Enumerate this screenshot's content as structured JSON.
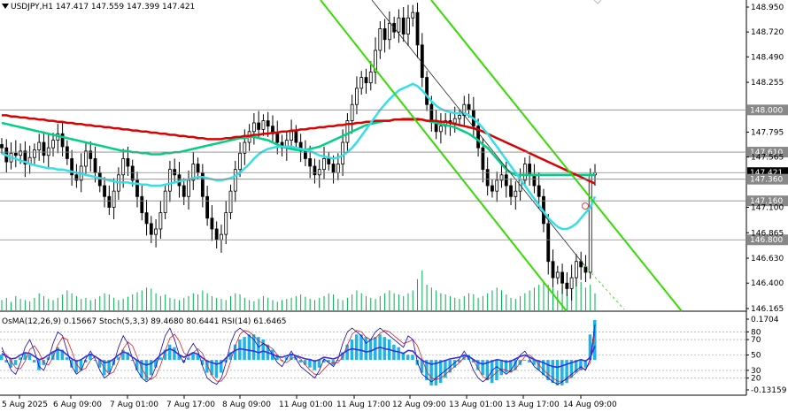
{
  "header": {
    "symbol_line": "USDJPY,H1  147.417 147.559 147.399 147.421",
    "indicator_line": "OsMA(12,26,9) 0.15667  Stoch(5,3,3) 89.4680 80.6441  RSI(14) 61.6465"
  },
  "chart_data": {
    "type": "candlestick",
    "symbol": "USDJPY",
    "timeframe": "H1",
    "ohlc_current": {
      "open": 147.417,
      "high": 147.559,
      "low": 147.399,
      "close": 147.421
    },
    "price_axis": {
      "min": 146.165,
      "max": 148.95,
      "ticks": [
        "148.950",
        "148.720",
        "148.490",
        "148.255",
        "148.000",
        "147.795",
        "147.565",
        "147.421",
        "147.360",
        "147.100",
        "146.865",
        "146.800",
        "146.630",
        "146.400",
        "146.165"
      ]
    },
    "price_markers": [
      {
        "label": "148.000",
        "value": 148.0,
        "style": "grey"
      },
      {
        "label": "147.610",
        "value": 147.61,
        "style": "grey"
      },
      {
        "label": "147.421",
        "value": 147.421,
        "style": "black"
      },
      {
        "label": "147.360",
        "value": 147.36,
        "style": "grey"
      },
      {
        "label": "147.160",
        "value": 147.16,
        "style": "grey"
      },
      {
        "label": "146.800",
        "value": 146.8,
        "style": "grey"
      }
    ],
    "x_labels": [
      "5 Aug 2025",
      "6 Aug 09:00",
      "7 Aug 01:00",
      "7 Aug 17:00",
      "8 Aug 09:00",
      "11 Aug 01:00",
      "11 Aug 17:00",
      "12 Aug 09:00",
      "13 Aug 01:00",
      "13 Aug 17:00",
      "14 Aug 09:00"
    ],
    "candles": [
      147.65,
      147.52,
      147.6,
      147.58,
      147.62,
      147.5,
      147.56,
      147.63,
      147.7,
      147.58,
      147.65,
      147.72,
      147.78,
      147.66,
      147.55,
      147.4,
      147.35,
      147.48,
      147.62,
      147.55,
      147.42,
      147.3,
      147.2,
      147.1,
      147.25,
      147.4,
      147.55,
      147.48,
      147.35,
      147.2,
      147.05,
      146.95,
      146.85,
      146.9,
      147.05,
      147.25,
      147.45,
      147.4,
      147.3,
      147.2,
      147.35,
      147.5,
      147.42,
      147.2,
      147.0,
      146.9,
      146.8,
      146.85,
      147.05,
      147.25,
      147.45,
      147.6,
      147.7,
      147.8,
      147.88,
      147.82,
      147.9,
      147.85,
      147.78,
      147.7,
      147.65,
      147.72,
      147.8,
      147.7,
      147.62,
      147.55,
      147.48,
      147.4,
      147.45,
      147.55,
      147.5,
      147.42,
      147.5,
      147.7,
      147.9,
      148.05,
      148.2,
      148.3,
      148.25,
      148.35,
      148.55,
      148.75,
      148.65,
      148.8,
      148.72,
      148.85,
      148.7,
      148.85,
      148.9,
      148.6,
      148.3,
      148.05,
      147.9,
      147.8,
      147.85,
      147.9,
      147.88,
      147.92,
      147.95,
      148.05,
      148.0,
      147.85,
      147.65,
      147.45,
      147.3,
      147.25,
      147.35,
      147.4,
      147.3,
      147.2,
      147.25,
      147.35,
      147.5,
      147.4,
      147.3,
      147.2,
      146.95,
      146.6,
      146.45,
      146.5,
      146.4,
      146.35,
      146.45,
      146.6,
      146.55,
      146.5,
      147.4,
      147.42
    ],
    "volumes": [
      18,
      22,
      15,
      25,
      20,
      18,
      16,
      22,
      30,
      25,
      20,
      18,
      22,
      28,
      35,
      30,
      25,
      20,
      22,
      18,
      20,
      25,
      30,
      28,
      22,
      18,
      20,
      24,
      28,
      32,
      35,
      40,
      38,
      30,
      25,
      28,
      22,
      20,
      18,
      22,
      25,
      30,
      28,
      35,
      30,
      25,
      22,
      20,
      18,
      25,
      30,
      28,
      22,
      18,
      16,
      20,
      25,
      22,
      18,
      15,
      18,
      20,
      22,
      25,
      28,
      24,
      20,
      18,
      22,
      25,
      30,
      28,
      20,
      18,
      22,
      28,
      35,
      30,
      25,
      22,
      20,
      25,
      30,
      35,
      30,
      28,
      25,
      30,
      35,
      55,
      70,
      45,
      40,
      35,
      30,
      28,
      25,
      22,
      20,
      25,
      30,
      28,
      22,
      25,
      30,
      35,
      40,
      35,
      28,
      22,
      20,
      25,
      30,
      35,
      40,
      45,
      50,
      45,
      40,
      35,
      42,
      48,
      55,
      65,
      50,
      40,
      45,
      30
    ],
    "ma_green": [
      147.88,
      147.87,
      147.86,
      147.85,
      147.84,
      147.83,
      147.82,
      147.81,
      147.8,
      147.79,
      147.78,
      147.77,
      147.76,
      147.75,
      147.74,
      147.73,
      147.72,
      147.71,
      147.7,
      147.69,
      147.68,
      147.67,
      147.66,
      147.65,
      147.64,
      147.63,
      147.62,
      147.62,
      147.61,
      147.61,
      147.6,
      147.6,
      147.59,
      147.59,
      147.59,
      147.6,
      147.6,
      147.61,
      147.61,
      147.62,
      147.63,
      147.64,
      147.65,
      147.66,
      147.67,
      147.68,
      147.69,
      147.7,
      147.71,
      147.72,
      147.73,
      147.74,
      147.74,
      147.75,
      147.75,
      147.74,
      147.73,
      147.72,
      147.7,
      147.68,
      147.66,
      147.65,
      147.64,
      147.63,
      147.63,
      147.63,
      147.64,
      147.65,
      147.66,
      147.68,
      147.7,
      147.72,
      147.74,
      147.76,
      147.78,
      147.8,
      147.82,
      147.84,
      147.86,
      147.87,
      147.88,
      147.89,
      147.9,
      147.9,
      147.91,
      147.91,
      147.92,
      147.92,
      147.92,
      147.92,
      147.91,
      147.9,
      147.89,
      147.88,
      147.87,
      147.86,
      147.85,
      147.84,
      147.82,
      147.8,
      147.78,
      147.75,
      147.72,
      147.68,
      147.65,
      147.6,
      147.55,
      147.5,
      147.45,
      147.42,
      147.4,
      147.4,
      147.4,
      147.4,
      147.4,
      147.4,
      147.4,
      147.4,
      147.4,
      147.4,
      147.4,
      147.4,
      147.4,
      147.4,
      147.4,
      147.4,
      147.4,
      147.4
    ],
    "ma_red": [
      147.95,
      147.95,
      147.94,
      147.94,
      147.93,
      147.93,
      147.92,
      147.92,
      147.91,
      147.91,
      147.9,
      147.9,
      147.89,
      147.89,
      147.88,
      147.88,
      147.87,
      147.87,
      147.86,
      147.86,
      147.85,
      147.85,
      147.84,
      147.84,
      147.83,
      147.83,
      147.82,
      147.82,
      147.81,
      147.81,
      147.8,
      147.8,
      147.79,
      147.79,
      147.78,
      147.78,
      147.77,
      147.77,
      147.76,
      147.76,
      147.75,
      147.75,
      147.74,
      147.74,
      147.73,
      147.73,
      147.73,
      147.73,
      147.74,
      147.74,
      147.75,
      147.75,
      147.76,
      147.76,
      147.77,
      147.77,
      147.78,
      147.78,
      147.79,
      147.79,
      147.8,
      147.8,
      147.81,
      147.81,
      147.82,
      147.82,
      147.83,
      147.83,
      147.84,
      147.84,
      147.85,
      147.85,
      147.86,
      147.86,
      147.87,
      147.87,
      147.88,
      147.88,
      147.89,
      147.89,
      147.9,
      147.9,
      147.9,
      147.9,
      147.91,
      147.91,
      147.91,
      147.91,
      147.91,
      147.91,
      147.91,
      147.9,
      147.9,
      147.9,
      147.89,
      147.89,
      147.88,
      147.87,
      147.86,
      147.85,
      147.84,
      147.83,
      147.82,
      147.8,
      147.78,
      147.76,
      147.74,
      147.72,
      147.7,
      147.68,
      147.66,
      147.64,
      147.62,
      147.6,
      147.58,
      147.56,
      147.54,
      147.52,
      147.5,
      147.48,
      147.46,
      147.44,
      147.42,
      147.4,
      147.38,
      147.36,
      147.34,
      147.32
    ],
    "ma_cyan": [
      147.6,
      147.58,
      147.56,
      147.55,
      147.53,
      147.52,
      147.5,
      147.49,
      147.48,
      147.47,
      147.46,
      147.46,
      147.45,
      147.45,
      147.44,
      147.43,
      147.42,
      147.41,
      147.4,
      147.39,
      147.38,
      147.37,
      147.36,
      147.35,
      147.34,
      147.33,
      147.33,
      147.33,
      147.32,
      147.32,
      147.31,
      147.31,
      147.3,
      147.3,
      147.3,
      147.31,
      147.32,
      147.33,
      147.34,
      147.35,
      147.36,
      147.37,
      147.38,
      147.38,
      147.37,
      147.36,
      147.35,
      147.35,
      147.36,
      147.37,
      147.39,
      147.42,
      147.46,
      147.5,
      147.55,
      147.59,
      147.62,
      147.64,
      147.65,
      147.66,
      147.66,
      147.66,
      147.66,
      147.65,
      147.64,
      147.63,
      147.62,
      147.6,
      147.58,
      147.57,
      147.56,
      147.55,
      147.56,
      147.58,
      147.61,
      147.65,
      147.7,
      147.76,
      147.82,
      147.88,
      147.94,
      148.0,
      148.05,
      148.1,
      148.14,
      148.18,
      148.2,
      148.22,
      148.24,
      148.22,
      148.18,
      148.13,
      148.08,
      148.04,
      148.01,
      147.99,
      147.98,
      147.97,
      147.97,
      147.97,
      147.95,
      147.92,
      147.88,
      147.83,
      147.78,
      147.72,
      147.66,
      147.6,
      147.54,
      147.48,
      147.42,
      147.36,
      147.3,
      147.24,
      147.18,
      147.12,
      147.06,
      147.0,
      146.96,
      146.92,
      146.9,
      146.9,
      146.92,
      146.95,
      147.0,
      147.05,
      147.1,
      147.2
    ],
    "channel_lines": [
      {
        "name": "",
        "from": [
          0,
          148.95
        ],
        "to": [
          128,
          146.1
        ]
      },
      {
        "name": "",
        "from": [
          0,
          148.95
        ],
        "to": [
          128,
          146.1
        ]
      }
    ],
    "oscillator": {
      "ticks": [
        "0.1704",
        "80",
        "70",
        "50",
        "30",
        "20",
        "-0.13159"
      ],
      "osma_values": [
        0.02,
        -0.01,
        -0.03,
        -0.02,
        0.01,
        0.03,
        0.02,
        -0.01,
        -0.04,
        -0.02,
        0.01,
        0.03,
        0.05,
        0.04,
        0.01,
        -0.03,
        -0.05,
        -0.04,
        -0.01,
        0.02,
        0.0,
        -0.03,
        -0.06,
        -0.05,
        -0.02,
        0.01,
        0.04,
        0.03,
        0.0,
        -0.04,
        -0.07,
        -0.08,
        -0.06,
        -0.03,
        0.01,
        0.04,
        0.06,
        0.05,
        0.02,
        -0.01,
        0.01,
        0.03,
        0.02,
        -0.02,
        -0.05,
        -0.06,
        -0.07,
        -0.05,
        -0.01,
        0.03,
        0.06,
        0.08,
        0.09,
        0.1,
        0.1,
        0.09,
        0.08,
        0.06,
        0.04,
        0.02,
        0.0,
        0.01,
        0.02,
        0.01,
        -0.01,
        -0.02,
        -0.03,
        -0.04,
        -0.03,
        -0.01,
        -0.01,
        -0.02,
        0.0,
        0.03,
        0.06,
        0.08,
        0.1,
        0.1,
        0.09,
        0.08,
        0.09,
        0.1,
        0.09,
        0.08,
        0.06,
        0.05,
        0.03,
        0.02,
        0.02,
        -0.02,
        -0.05,
        -0.08,
        -0.1,
        -0.1,
        -0.09,
        -0.07,
        -0.05,
        -0.03,
        -0.01,
        0.02,
        0.02,
        -0.01,
        -0.04,
        -0.06,
        -0.08,
        -0.09,
        -0.08,
        -0.06,
        -0.05,
        -0.05,
        -0.04,
        -0.02,
        0.0,
        -0.01,
        -0.02,
        -0.04,
        -0.06,
        -0.08,
        -0.09,
        -0.1,
        -0.1,
        -0.09,
        -0.07,
        -0.05,
        -0.04,
        -0.03,
        0.1,
        0.1567
      ],
      "stoch_main": [
        60,
        45,
        30,
        25,
        40,
        60,
        70,
        55,
        35,
        30,
        45,
        65,
        80,
        75,
        55,
        35,
        25,
        30,
        45,
        55,
        45,
        30,
        20,
        25,
        40,
        60,
        75,
        65,
        45,
        30,
        20,
        15,
        20,
        35,
        55,
        75,
        85,
        70,
        50,
        40,
        55,
        65,
        55,
        35,
        20,
        15,
        12,
        20,
        40,
        65,
        80,
        85,
        80,
        75,
        70,
        60,
        65,
        60,
        50,
        40,
        35,
        45,
        55,
        45,
        35,
        30,
        25,
        20,
        30,
        45,
        40,
        35,
        45,
        65,
        80,
        85,
        80,
        75,
        65,
        70,
        80,
        85,
        80,
        75,
        70,
        65,
        60,
        75,
        70,
        40,
        25,
        20,
        15,
        20,
        25,
        30,
        35,
        40,
        45,
        55,
        45,
        30,
        20,
        15,
        20,
        30,
        35,
        30,
        25,
        30,
        40,
        50,
        55,
        45,
        35,
        30,
        25,
        20,
        15,
        12,
        15,
        20,
        25,
        30,
        35,
        30,
        45,
        89.47
      ],
      "stoch_signal": [
        55,
        50,
        42,
        33,
        32,
        42,
        57,
        62,
        53,
        40,
        37,
        47,
        63,
        73,
        70,
        55,
        38,
        30,
        33,
        43,
        48,
        43,
        32,
        25,
        28,
        42,
        58,
        67,
        62,
        47,
        32,
        22,
        18,
        23,
        37,
        55,
        72,
        77,
        68,
        53,
        48,
        53,
        58,
        52,
        37,
        23,
        16,
        16,
        24,
        42,
        62,
        77,
        82,
        80,
        75,
        68,
        65,
        62,
        58,
        50,
        42,
        40,
        45,
        48,
        45,
        37,
        30,
        25,
        25,
        32,
        38,
        40,
        40,
        48,
        63,
        77,
        82,
        80,
        73,
        70,
        72,
        78,
        82,
        80,
        75,
        70,
        65,
        67,
        70,
        62,
        45,
        28,
        20,
        18,
        20,
        25,
        30,
        35,
        40,
        47,
        48,
        43,
        32,
        22,
        18,
        22,
        28,
        32,
        30,
        28,
        32,
        40,
        48,
        50,
        45,
        37,
        30,
        25,
        20,
        16,
        16,
        18,
        22,
        27,
        32,
        32,
        40,
        80.64
      ],
      "rsi": [
        52,
        48,
        45,
        46,
        50,
        53,
        52,
        48,
        44,
        46,
        50,
        54,
        57,
        55,
        50,
        45,
        42,
        44,
        48,
        51,
        48,
        44,
        40,
        41,
        45,
        50,
        54,
        52,
        47,
        43,
        39,
        37,
        39,
        44,
        50,
        55,
        58,
        55,
        50,
        47,
        50,
        53,
        51,
        46,
        42,
        40,
        38,
        40,
        46,
        52,
        56,
        58,
        57,
        56,
        55,
        53,
        55,
        53,
        51,
        48,
        47,
        49,
        51,
        49,
        47,
        45,
        44,
        42,
        44,
        47,
        46,
        45,
        47,
        52,
        56,
        58,
        57,
        56,
        54,
        55,
        58,
        60,
        58,
        57,
        55,
        54,
        52,
        56,
        55,
        48,
        43,
        40,
        38,
        39,
        41,
        43,
        45,
        46,
        47,
        50,
        48,
        44,
        40,
        38,
        40,
        42,
        44,
        43,
        41,
        42,
        45,
        48,
        50,
        47,
        44,
        42,
        40,
        37,
        35,
        34,
        36,
        38,
        40,
        42,
        44,
        42,
        47,
        61.65
      ],
      "stoch_levels": [
        80,
        70,
        50,
        30,
        20
      ]
    }
  },
  "colors": {
    "bg": "#ffffff",
    "candle": "#000000",
    "volume": "#00b050",
    "ma_green": "#00d084",
    "ma_red": "#dd0000",
    "ma_cyan": "#33e0ea",
    "channel": "#33dd00",
    "osma": "#1eb4e6",
    "stoch_main": "#1800b3",
    "stoch_signal": "#e02020",
    "rsi": "#3a2fe0",
    "grid": "#000000",
    "marker_grey": "#888888"
  },
  "icons": {
    "dropdown": "triangle-down-icon",
    "chevron_top_right": "chevron-icon"
  }
}
